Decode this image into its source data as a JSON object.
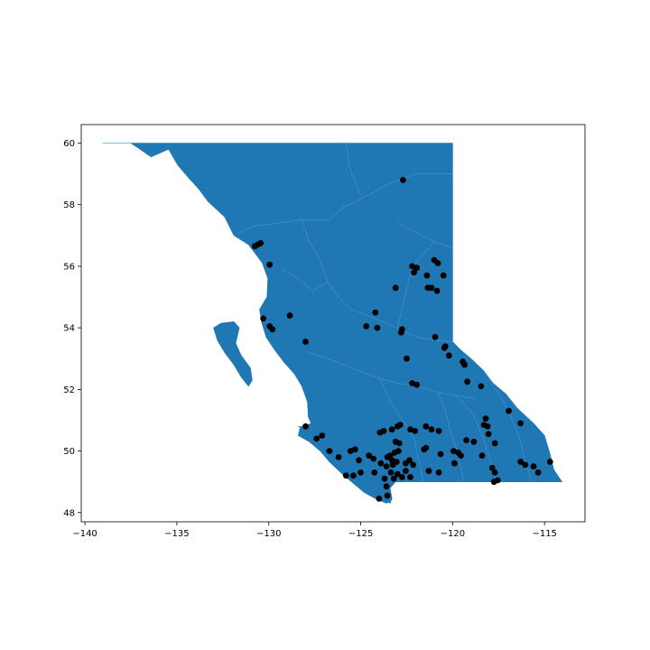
{
  "chart_data": {
    "type": "scatter",
    "title": "",
    "xlabel": "",
    "ylabel": "",
    "xlim": [
      -140.2,
      -112.8
    ],
    "ylim": [
      47.7,
      60.6
    ],
    "x_ticks": [
      {
        "value": -140,
        "label": "−140"
      },
      {
        "value": -135,
        "label": "−135"
      },
      {
        "value": -130,
        "label": "−130"
      },
      {
        "value": -125,
        "label": "−125"
      },
      {
        "value": -120,
        "label": "−120"
      },
      {
        "value": -115,
        "label": "−115"
      }
    ],
    "y_ticks": [
      {
        "value": 48,
        "label": "48"
      },
      {
        "value": 50,
        "label": "50"
      },
      {
        "value": 52,
        "label": "52"
      },
      {
        "value": 54,
        "label": "54"
      },
      {
        "value": 56,
        "label": "56"
      },
      {
        "value": 58,
        "label": "58"
      },
      {
        "value": 60,
        "label": "60"
      }
    ],
    "grid": false,
    "colors": {
      "region_fill": "#1f77b4",
      "region_edge": "#5b9bd5",
      "points": "#000000"
    },
    "region_outline": [
      [
        -139.05,
        60.0
      ],
      [
        -137.5,
        60.0
      ],
      [
        -136.4,
        59.55
      ],
      [
        -135.45,
        59.8
      ],
      [
        -134.95,
        59.28
      ],
      [
        -134.4,
        58.9
      ],
      [
        -133.8,
        58.5
      ],
      [
        -133.3,
        58.1
      ],
      [
        -132.4,
        57.6
      ],
      [
        -131.9,
        57.0
      ],
      [
        -131.1,
        56.7
      ],
      [
        -130.35,
        56.1
      ],
      [
        -130.05,
        55.6
      ],
      [
        -130.1,
        55.0
      ],
      [
        -130.5,
        54.6
      ],
      [
        -130.4,
        54.2
      ],
      [
        -130.15,
        53.7
      ],
      [
        -129.7,
        53.3
      ],
      [
        -129.2,
        52.9
      ],
      [
        -128.6,
        52.5
      ],
      [
        -128.2,
        52.1
      ],
      [
        -127.9,
        51.6
      ],
      [
        -127.85,
        51.1
      ],
      [
        -127.7,
        50.9
      ],
      [
        -128.3,
        50.75
      ],
      [
        -128.4,
        50.5
      ],
      [
        -127.8,
        50.3
      ],
      [
        -127.2,
        50.0
      ],
      [
        -126.7,
        49.65
      ],
      [
        -126.0,
        49.25
      ],
      [
        -125.4,
        48.95
      ],
      [
        -124.8,
        48.65
      ],
      [
        -124.2,
        48.45
      ],
      [
        -123.6,
        48.3
      ],
      [
        -123.3,
        48.45
      ],
      [
        -123.4,
        48.8
      ],
      [
        -123.1,
        49.0
      ],
      [
        -122.75,
        49.0
      ],
      [
        -117.0,
        49.0
      ],
      [
        -114.05,
        49.0
      ],
      [
        -114.5,
        49.4
      ],
      [
        -114.7,
        49.9
      ],
      [
        -115.0,
        50.5
      ],
      [
        -115.6,
        50.9
      ],
      [
        -116.5,
        51.4
      ],
      [
        -117.1,
        51.85
      ],
      [
        -117.8,
        52.2
      ],
      [
        -118.3,
        52.6
      ],
      [
        -119.0,
        53.0
      ],
      [
        -119.6,
        53.3
      ],
      [
        -120.0,
        53.55
      ],
      [
        -120.0,
        60.0
      ],
      [
        -128.9,
        60.0
      ],
      [
        -132.9,
        60.0
      ],
      [
        -134.9,
        60.0
      ]
    ],
    "islands": [
      [
        [
          -131.9,
          54.2
        ],
        [
          -131.6,
          54.0
        ],
        [
          -131.8,
          53.5
        ],
        [
          -131.5,
          53.1
        ],
        [
          -131.0,
          52.7
        ],
        [
          -130.9,
          52.3
        ],
        [
          -131.1,
          52.1
        ],
        [
          -131.5,
          52.4
        ],
        [
          -131.9,
          52.8
        ],
        [
          -132.4,
          53.2
        ],
        [
          -132.8,
          53.6
        ],
        [
          -133.0,
          54.0
        ],
        [
          -132.6,
          54.15
        ]
      ],
      [
        [
          -128.4,
          50.8
        ],
        [
          -127.9,
          50.7
        ],
        [
          -127.2,
          50.45
        ],
        [
          -126.6,
          50.2
        ],
        [
          -126.0,
          49.8
        ],
        [
          -125.5,
          49.4
        ],
        [
          -124.6,
          48.85
        ],
        [
          -123.9,
          48.45
        ],
        [
          -123.4,
          48.3
        ],
        [
          -123.3,
          48.45
        ],
        [
          -123.5,
          48.7
        ],
        [
          -123.9,
          49.05
        ],
        [
          -124.4,
          49.4
        ],
        [
          -124.9,
          49.75
        ],
        [
          -125.3,
          50.1
        ],
        [
          -125.9,
          50.45
        ],
        [
          -126.6,
          50.6
        ],
        [
          -127.4,
          50.75
        ]
      ]
    ],
    "internal_boundaries": [
      [
        [
          -131.9,
          57.0
        ],
        [
          -130.8,
          57.3
        ],
        [
          -129.5,
          57.4
        ],
        [
          -128.2,
          57.5
        ],
        [
          -126.7,
          57.5
        ]
      ],
      [
        [
          -128.2,
          57.5
        ],
        [
          -127.8,
          56.8
        ],
        [
          -127.2,
          56.2
        ],
        [
          -126.8,
          55.5
        ],
        [
          -126.2,
          55.0
        ],
        [
          -125.5,
          54.6
        ]
      ],
      [
        [
          -126.7,
          57.5
        ],
        [
          -126.0,
          57.9
        ],
        [
          -124.6,
          58.3
        ],
        [
          -123.4,
          58.7
        ],
        [
          -122.0,
          59.0
        ],
        [
          -120.0,
          59.0
        ]
      ],
      [
        [
          -125.8,
          60.0
        ],
        [
          -125.6,
          59.2
        ],
        [
          -125.0,
          58.3
        ]
      ],
      [
        [
          -123.0,
          57.4
        ],
        [
          -122.0,
          57.1
        ],
        [
          -121.0,
          56.8
        ],
        [
          -120.0,
          56.6
        ]
      ],
      [
        [
          -125.5,
          54.6
        ],
        [
          -124.2,
          54.3
        ],
        [
          -123.0,
          54.0
        ],
        [
          -122.0,
          53.7
        ],
        [
          -120.9,
          53.6
        ],
        [
          -120.0,
          53.55
        ]
      ],
      [
        [
          -127.9,
          53.2
        ],
        [
          -126.8,
          53.0
        ],
        [
          -125.5,
          52.7
        ],
        [
          -124.2,
          52.4
        ],
        [
          -123.0,
          52.2
        ],
        [
          -121.9,
          52.1
        ],
        [
          -120.8,
          51.9
        ],
        [
          -119.8,
          51.8
        ],
        [
          -118.8,
          51.7
        ]
      ],
      [
        [
          -124.0,
          52.4
        ],
        [
          -123.4,
          51.6
        ],
        [
          -122.6,
          50.9
        ],
        [
          -122.1,
          50.4
        ],
        [
          -121.8,
          49.6
        ],
        [
          -121.6,
          49.0
        ]
      ],
      [
        [
          -120.8,
          51.9
        ],
        [
          -120.4,
          51.3
        ],
        [
          -120.1,
          50.6
        ],
        [
          -119.7,
          49.9
        ],
        [
          -119.4,
          49.0
        ]
      ],
      [
        [
          -119.8,
          51.8
        ],
        [
          -118.9,
          51.2
        ],
        [
          -118.4,
          50.5
        ],
        [
          -118.0,
          49.8
        ],
        [
          -117.6,
          49.0
        ]
      ],
      [
        [
          -118.3,
          52.6
        ],
        [
          -117.4,
          51.8
        ],
        [
          -116.9,
          51.2
        ],
        [
          -116.4,
          50.5
        ],
        [
          -116.0,
          49.6
        ],
        [
          -115.7,
          49.0
        ]
      ],
      [
        [
          -123.0,
          54.0
        ],
        [
          -122.6,
          55.0
        ],
        [
          -122.2,
          56.0
        ],
        [
          -121.0,
          56.8
        ]
      ],
      [
        [
          -129.3,
          55.9
        ],
        [
          -128.4,
          55.6
        ],
        [
          -127.6,
          55.2
        ],
        [
          -126.8,
          55.5
        ]
      ]
    ],
    "points": [
      [
        -122.7,
        58.8
      ],
      [
        -130.75,
        56.65
      ],
      [
        -130.6,
        56.7
      ],
      [
        -130.45,
        56.75
      ],
      [
        -129.95,
        56.05
      ],
      [
        -121.0,
        56.2
      ],
      [
        -120.8,
        56.1
      ],
      [
        -122.2,
        56.0
      ],
      [
        -121.95,
        55.95
      ],
      [
        -122.1,
        55.8
      ],
      [
        -121.4,
        55.7
      ],
      [
        -120.5,
        55.7
      ],
      [
        -123.1,
        55.3
      ],
      [
        -121.35,
        55.3
      ],
      [
        -121.15,
        55.3
      ],
      [
        -120.85,
        55.2
      ],
      [
        -130.3,
        54.3
      ],
      [
        -128.85,
        54.4
      ],
      [
        -129.95,
        54.05
      ],
      [
        -129.8,
        53.95
      ],
      [
        -124.2,
        54.5
      ],
      [
        -124.7,
        54.05
      ],
      [
        -124.1,
        54.0
      ],
      [
        -122.75,
        53.95
      ],
      [
        -122.8,
        53.85
      ],
      [
        -120.95,
        53.7
      ],
      [
        -128.0,
        53.55
      ],
      [
        -120.4,
        53.4
      ],
      [
        -120.45,
        53.35
      ],
      [
        -120.2,
        53.1
      ],
      [
        -122.5,
        53.0
      ],
      [
        -119.45,
        52.9
      ],
      [
        -119.35,
        52.8
      ],
      [
        -122.2,
        52.2
      ],
      [
        -121.95,
        52.15
      ],
      [
        -119.2,
        52.25
      ],
      [
        -118.45,
        52.1
      ],
      [
        -116.95,
        51.3
      ],
      [
        -118.2,
        51.05
      ],
      [
        -118.1,
        50.8
      ],
      [
        -118.3,
        50.85
      ],
      [
        -116.3,
        50.9
      ],
      [
        -118.05,
        50.55
      ],
      [
        -128.0,
        50.8
      ],
      [
        -127.4,
        50.4
      ],
      [
        -127.1,
        50.5
      ],
      [
        -126.7,
        50.0
      ],
      [
        -126.2,
        49.8
      ],
      [
        -125.55,
        50.0
      ],
      [
        -125.3,
        50.05
      ],
      [
        -125.1,
        49.7
      ],
      [
        -124.55,
        49.85
      ],
      [
        -124.3,
        49.75
      ],
      [
        -123.95,
        50.6
      ],
      [
        -123.75,
        50.65
      ],
      [
        -123.3,
        50.7
      ],
      [
        -123.0,
        50.8
      ],
      [
        -122.85,
        50.85
      ],
      [
        -122.3,
        50.7
      ],
      [
        -122.05,
        50.65
      ],
      [
        -121.45,
        50.8
      ],
      [
        -121.15,
        50.7
      ],
      [
        -120.75,
        50.65
      ],
      [
        -123.1,
        50.3
      ],
      [
        -122.9,
        50.25
      ],
      [
        -122.95,
        50.0
      ],
      [
        -123.15,
        49.95
      ],
      [
        -123.4,
        49.85
      ],
      [
        -123.55,
        49.8
      ],
      [
        -123.3,
        49.7
      ],
      [
        -123.05,
        49.65
      ],
      [
        -123.25,
        49.55
      ],
      [
        -122.55,
        49.6
      ],
      [
        -122.35,
        49.7
      ],
      [
        -122.15,
        49.55
      ],
      [
        -121.55,
        50.05
      ],
      [
        -120.65,
        49.9
      ],
      [
        -119.95,
        50.0
      ],
      [
        -119.55,
        49.85
      ],
      [
        -119.7,
        49.95
      ],
      [
        -119.25,
        50.35
      ],
      [
        -118.85,
        50.3
      ],
      [
        -121.45,
        50.1
      ],
      [
        -123.6,
        49.5
      ],
      [
        -123.35,
        49.3
      ],
      [
        -123.0,
        49.25
      ],
      [
        -122.55,
        49.35
      ],
      [
        -122.3,
        49.15
      ],
      [
        -122.75,
        49.15
      ],
      [
        -123.2,
        49.1
      ],
      [
        -123.7,
        49.1
      ],
      [
        -123.6,
        48.85
      ],
      [
        -124.25,
        49.3
      ],
      [
        -125.4,
        49.2
      ],
      [
        -125.8,
        49.2
      ],
      [
        -125.0,
        49.3
      ],
      [
        -123.55,
        48.55
      ],
      [
        -124.0,
        48.45
      ],
      [
        -117.7,
        50.25
      ],
      [
        -118.4,
        49.85
      ],
      [
        -117.85,
        49.45
      ],
      [
        -117.7,
        49.3
      ],
      [
        -117.75,
        49.0
      ],
      [
        -117.55,
        49.05
      ],
      [
        -116.3,
        49.65
      ],
      [
        -116.05,
        49.55
      ],
      [
        -115.6,
        49.5
      ],
      [
        -115.35,
        49.3
      ],
      [
        -114.7,
        49.65
      ],
      [
        -120.75,
        49.3
      ],
      [
        -119.9,
        49.6
      ],
      [
        -121.3,
        49.35
      ],
      [
        -123.9,
        49.6
      ]
    ]
  }
}
